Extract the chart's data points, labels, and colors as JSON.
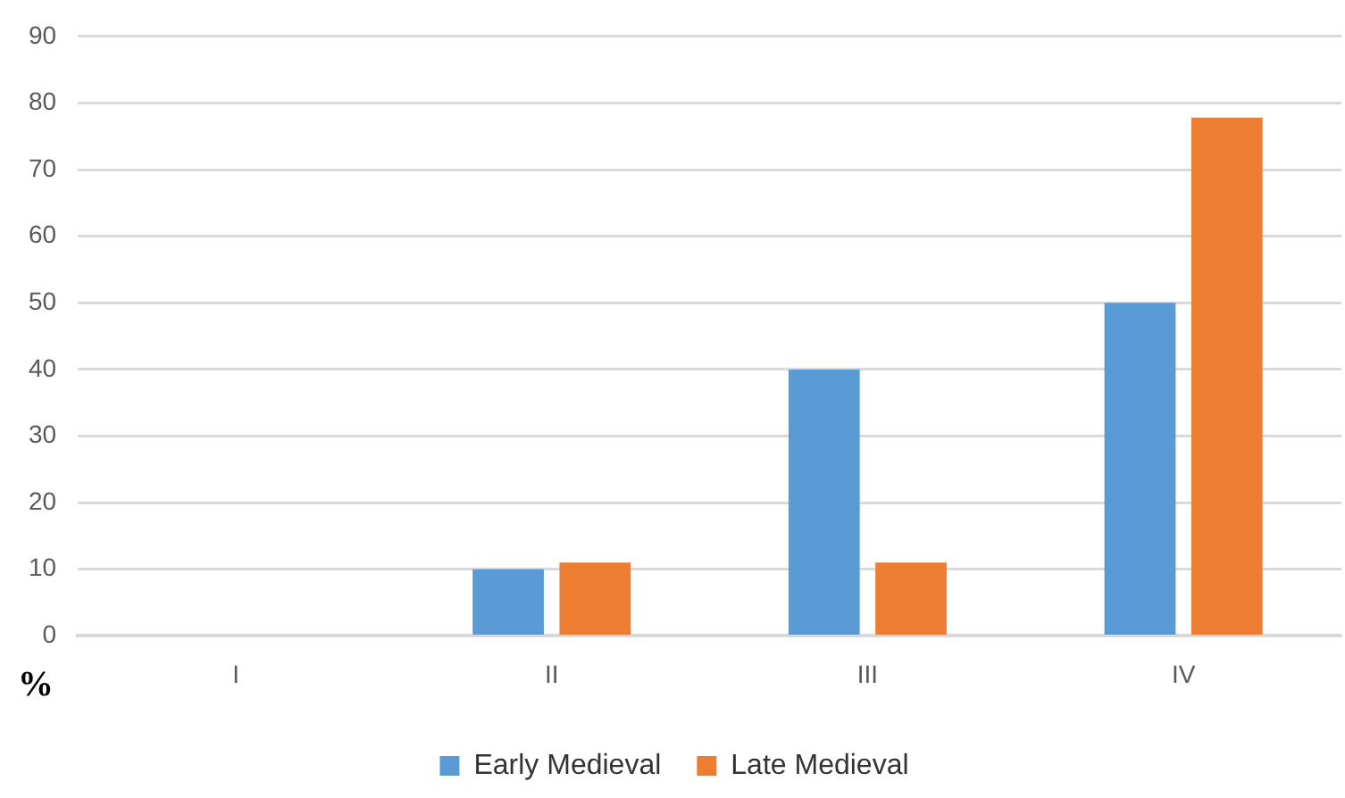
{
  "chart_data": {
    "type": "bar",
    "ylabel": "%",
    "categories": [
      "I",
      "II",
      "III",
      "IV"
    ],
    "series": [
      {
        "name": "Early Medieval",
        "color": "#5b9bd5",
        "values": [
          0,
          10,
          40,
          50
        ]
      },
      {
        "name": "Late Medieval",
        "color": "#ed7d31",
        "values": [
          0,
          11,
          11,
          77.8
        ]
      }
    ],
    "ylim": [
      0,
      90
    ],
    "yticks": [
      0,
      10,
      20,
      30,
      40,
      50,
      60,
      70,
      80,
      90
    ],
    "grid": "y",
    "legend": "bottom"
  }
}
